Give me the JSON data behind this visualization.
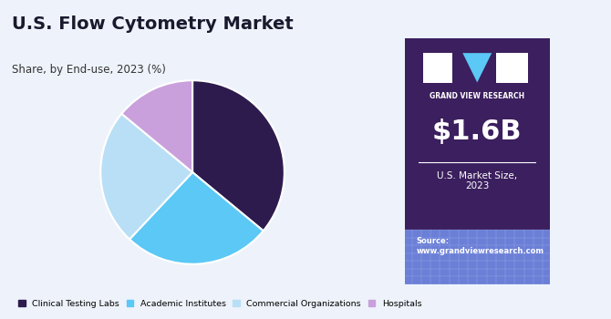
{
  "title": "U.S. Flow Cytometry Market",
  "subtitle": "Share, by End-use, 2023 (%)",
  "slices": [
    {
      "label": "Clinical Testing Labs",
      "value": 36,
      "color": "#2d1b4e"
    },
    {
      "label": "Academic Institutes",
      "value": 26,
      "color": "#5bc8f5"
    },
    {
      "label": "Commercial Organizations",
      "value": 24,
      "color": "#b8dff5"
    },
    {
      "label": "Hospitals",
      "value": 14,
      "color": "#c9a0dc"
    }
  ],
  "start_angle": 90,
  "market_size": "$1.6B",
  "market_label": "U.S. Market Size,\n2023",
  "source_text": "Source:\nwww.grandviewresearch.com",
  "sidebar_bg": "#3b1f5e",
  "sidebar_bottom_bg": "#6b7fd7",
  "main_bg": "#eef3fb",
  "title_color": "#1a1a2e",
  "subtitle_color": "#333333",
  "legend_colors": [
    "#2d1b4e",
    "#5bc8f5",
    "#b8dff5",
    "#c9a0dc"
  ],
  "legend_labels": [
    "Clinical Testing Labs",
    "Academic Institutes",
    "Commercial Organizations",
    "Hospitals"
  ]
}
